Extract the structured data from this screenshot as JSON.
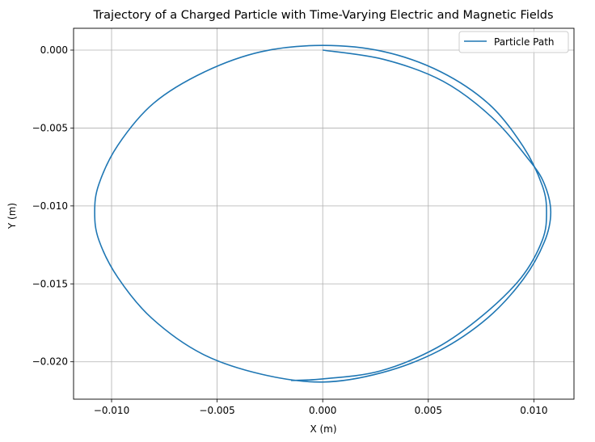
{
  "chart_data": {
    "type": "line",
    "title": "Trajectory of a Charged Particle with Time-Varying Electric and Magnetic Fields",
    "xlabel": "X (m)",
    "ylabel": "Y (m)",
    "xlim": [
      -0.0118,
      0.0119
    ],
    "ylim": [
      -0.0224,
      0.0014
    ],
    "x_ticks": [
      -0.01,
      -0.005,
      0.0,
      0.005,
      0.01
    ],
    "x_tick_labels": [
      "−0.010",
      "−0.005",
      "0.000",
      "0.005",
      "0.010"
    ],
    "y_ticks": [
      0.0,
      -0.005,
      -0.01,
      -0.015,
      -0.02
    ],
    "y_tick_labels": [
      "0.000",
      "−0.005",
      "−0.010",
      "−0.015",
      "−0.020"
    ],
    "grid": true,
    "legend_position": "top-right",
    "series": [
      {
        "name": "Particle Path",
        "color": "#1f77b4",
        "x": [
          0.0,
          0.0029,
          0.0057,
          0.008,
          0.0098,
          0.0105,
          0.0108,
          0.0105,
          0.0095,
          0.0078,
          0.0055,
          0.0028,
          0.0,
          -0.0029,
          -0.0057,
          -0.0081,
          -0.0097,
          -0.0106,
          -0.0108,
          -0.0106,
          -0.0097,
          -0.008,
          -0.0056,
          -0.0029,
          0.0,
          0.0029,
          0.0056,
          0.0079,
          0.0095,
          0.0104,
          0.0106,
          0.0104,
          0.0094,
          0.0076,
          0.0054,
          0.0027,
          0.0,
          -0.0015
        ],
        "y": [
          0.0,
          -0.0006,
          -0.002,
          -0.0043,
          -0.0071,
          -0.0086,
          -0.0104,
          -0.0123,
          -0.0147,
          -0.0172,
          -0.0193,
          -0.0207,
          -0.0213,
          -0.0208,
          -0.0195,
          -0.0172,
          -0.0146,
          -0.0122,
          -0.0104,
          -0.0086,
          -0.0061,
          -0.0034,
          -0.0014,
          -0.0001,
          0.0003,
          -0.0001,
          -0.0014,
          -0.0035,
          -0.0062,
          -0.0087,
          -0.0104,
          -0.0122,
          -0.0146,
          -0.017,
          -0.0191,
          -0.0206,
          -0.0211,
          -0.0212
        ]
      }
    ]
  }
}
